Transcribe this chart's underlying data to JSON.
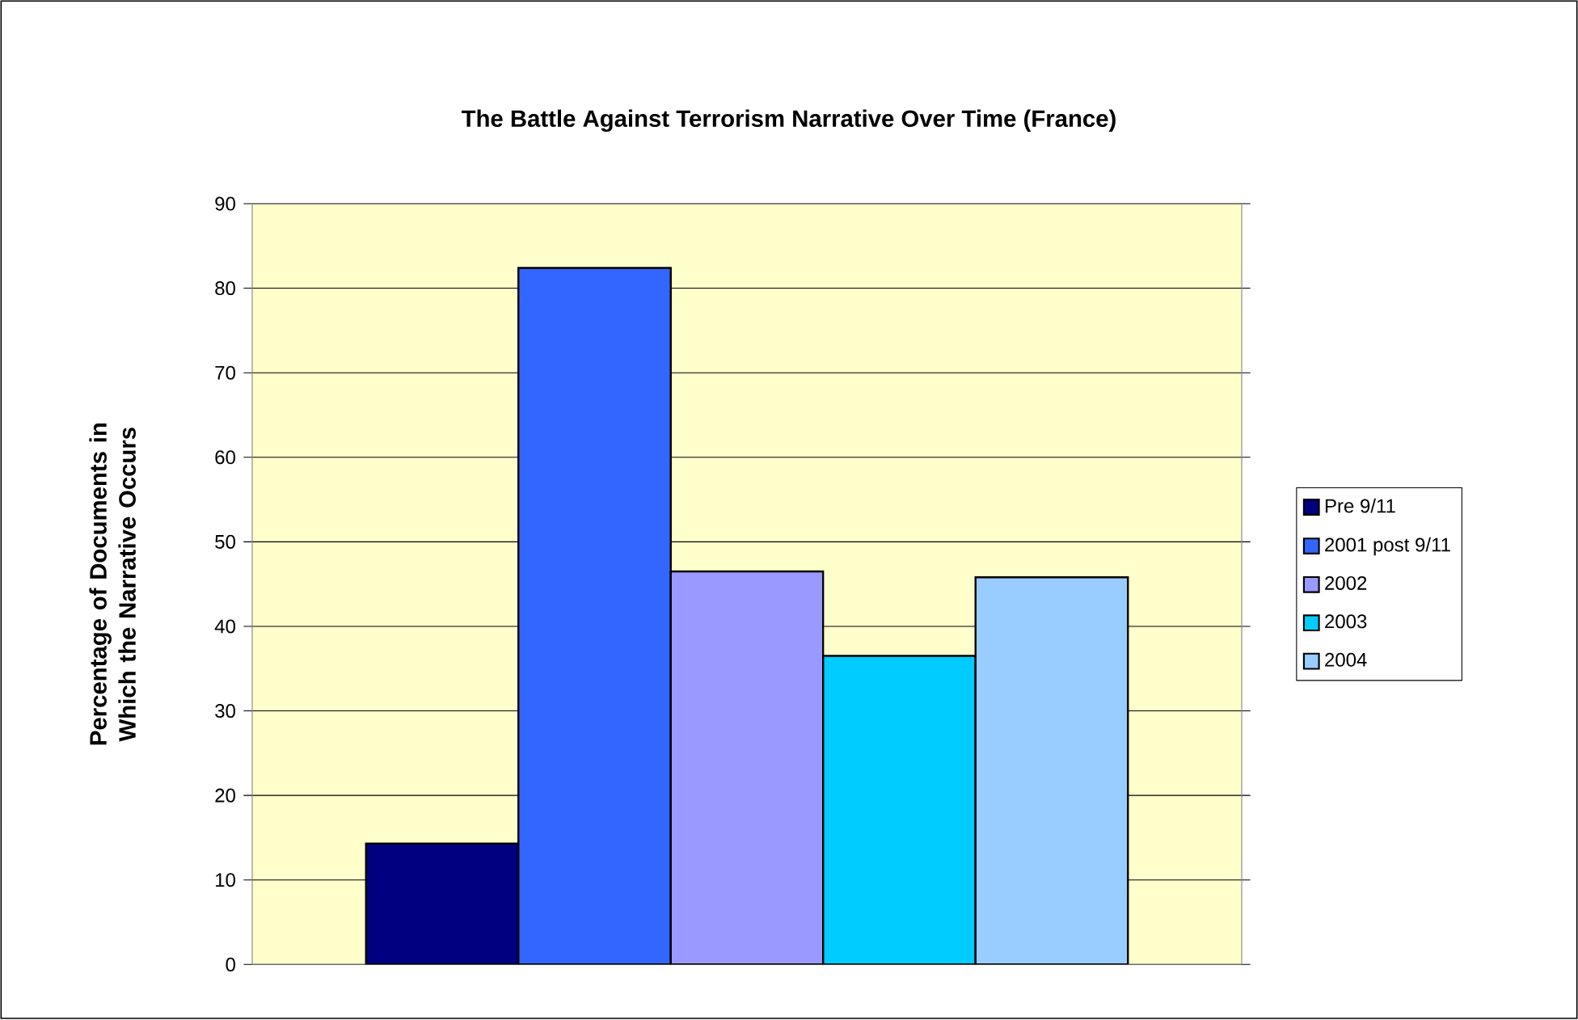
{
  "chart_data": {
    "type": "bar",
    "title": "The Battle Against Terrorism Narrative Over Time (France)",
    "ylabel": "Percentage of Documents in Which the Narrative Occurs",
    "categories": [
      null
    ],
    "series": [
      {
        "name": "Pre 9/11",
        "color": "#000080",
        "values": [
          14.3
        ]
      },
      {
        "name": "2001 post 9/11",
        "color": "#3366ff",
        "values": [
          82.4
        ]
      },
      {
        "name": "2002",
        "color": "#9999ff",
        "values": [
          46.5
        ]
      },
      {
        "name": "2003",
        "color": "#00ccff",
        "values": [
          36.5
        ]
      },
      {
        "name": "2004",
        "color": "#99ccff",
        "values": [
          45.8
        ]
      }
    ],
    "ylim": [
      0,
      90
    ],
    "yticks": [
      0,
      10,
      20,
      30,
      40,
      50,
      60,
      70,
      80,
      90
    ],
    "grid": "y",
    "legend": "right"
  }
}
